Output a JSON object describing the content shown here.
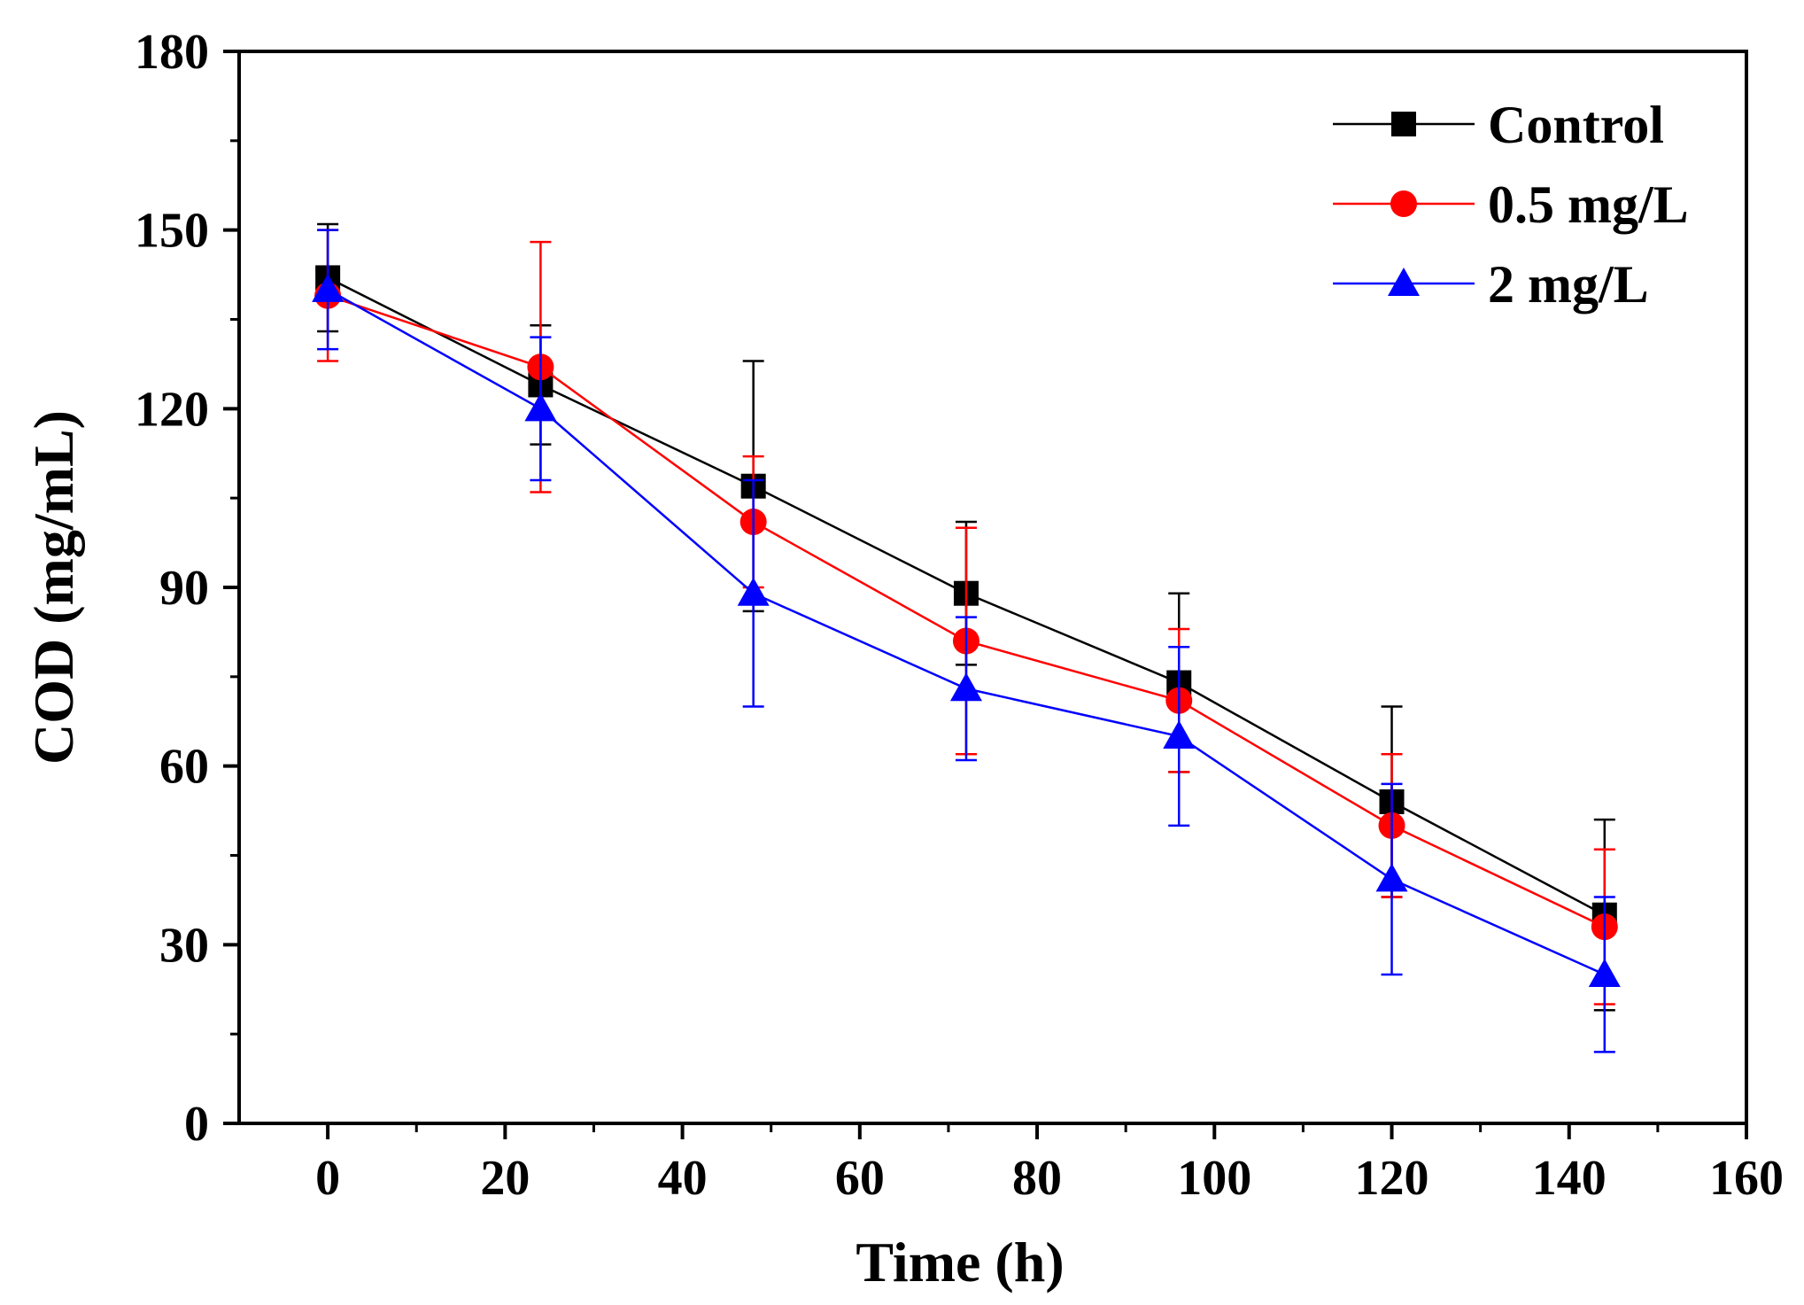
{
  "chart_data": {
    "type": "line",
    "title": "",
    "xlabel": "Time (h)",
    "ylabel": "COD (mg/mL)",
    "xlim": [
      -10,
      160
    ],
    "ylim": [
      0,
      180
    ],
    "xticks": [
      0,
      20,
      40,
      60,
      80,
      100,
      120,
      140,
      160
    ],
    "yticks": [
      0,
      30,
      60,
      90,
      120,
      150,
      180
    ],
    "x": [
      0,
      24,
      48,
      72,
      96,
      120,
      144
    ],
    "legend_position": "top-right",
    "series": [
      {
        "name": "Control",
        "color": "#000000",
        "marker": "square",
        "values": [
          142,
          124,
          107,
          89,
          74,
          54,
          35
        ],
        "errors": [
          9,
          10,
          21,
          12,
          15,
          16,
          16
        ]
      },
      {
        "name": "0.5 mg/L",
        "color": "#ff0000",
        "marker": "circle",
        "values": [
          139,
          127,
          101,
          81,
          71,
          50,
          33
        ],
        "errors": [
          11,
          21,
          11,
          19,
          12,
          12,
          13
        ]
      },
      {
        "name": "2 mg/L",
        "color": "#0000ff",
        "marker": "triangle",
        "values": [
          140,
          120,
          89,
          73,
          65,
          41,
          25
        ],
        "errors": [
          10,
          12,
          19,
          12,
          15,
          16,
          13
        ]
      }
    ]
  }
}
